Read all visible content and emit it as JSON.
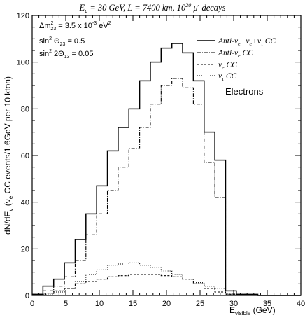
{
  "chart_data": {
    "type": "line",
    "title": "E_μ = 30 GeV, L = 7400 km, 10^20 μ⁻ decays",
    "title_parts": {
      "e": "E",
      "e_sub": "μ",
      "rest": " = 30 GeV, L = 7400 km, 10",
      "exp": "20",
      "mu": " μ",
      "mu_sup": "-",
      "tail": " decays"
    },
    "xlabel": "E_visible (GeV)",
    "xlabel_parts": {
      "main": "E",
      "sub": "visible",
      "unit": " (GeV)"
    },
    "ylabel": "dN/dE_ν (ν_e CC events/1.6GeV per 10 kton)",
    "ylabel_parts": {
      "a": "dN/dE",
      "a_sub": "ν",
      "b": " (ν",
      "b_sub": "e",
      "c": " CC events/1.6GeV per 10 kton)"
    },
    "xlim": [
      0,
      40
    ],
    "ylim": [
      0,
      120
    ],
    "xticks": [
      "0",
      "5",
      "10",
      "15",
      "20",
      "25",
      "30",
      "35",
      "40"
    ],
    "yticks": [
      "0",
      "20",
      "40",
      "60",
      "80",
      "100",
      "120"
    ],
    "grid": false,
    "legend_position": "top-right",
    "panel_label": "Electrons",
    "parameters": [
      {
        "lhs": "Δm",
        "sub": "23",
        "sup": "2",
        "rhs": " = 3.5 x 10",
        "rhs_sup": "-3",
        "tail": " eV",
        "tail_sup": "2"
      },
      {
        "lhs": "sin",
        "sup": "2",
        "sym": " Θ",
        "sub": "23",
        "rhs": " = 0.5"
      },
      {
        "lhs": "sin",
        "sup": "2",
        "sym": " 2Θ",
        "sub": "13",
        "rhs": " = 0.05"
      }
    ],
    "bin_edges": [
      0,
      1.6,
      3.2,
      4.8,
      6.4,
      8.0,
      9.6,
      11.2,
      12.8,
      14.4,
      16.0,
      17.6,
      19.2,
      20.8,
      22.4,
      24.0,
      25.6,
      27.2,
      28.8,
      30.4,
      32.0,
      33.6,
      35.2,
      36.8,
      38.4,
      40.0
    ],
    "series": [
      {
        "name": "Anti-ν_e+ν_e+ν_τ CC",
        "legend_parts": {
          "a": "Anti-ν",
          "a_sub": "e",
          "b": "+ν",
          "b_sub": "e",
          "c": "+ν",
          "c_sub": "τ",
          "d": " CC"
        },
        "style": "solid",
        "color": "#000000",
        "values": [
          0.5,
          4,
          7,
          14,
          24,
          35,
          47,
          62,
          72,
          80,
          92,
          100,
          106,
          108,
          104,
          92,
          70,
          58,
          2,
          0.5,
          0.5,
          0,
          0,
          0,
          0
        ]
      },
      {
        "name": "Anti-ν_e CC",
        "legend_parts": {
          "a": "Anti-ν",
          "a_sub": "e",
          "d": " CC"
        },
        "style": "dashdot",
        "color": "#000000",
        "values": [
          0.5,
          2,
          4,
          8,
          15,
          26,
          35,
          45,
          55,
          63,
          72,
          82,
          90,
          93,
          89,
          82,
          57,
          42,
          1,
          0.5,
          0,
          0,
          0,
          0,
          0
        ]
      },
      {
        "name": "ν_e CC",
        "legend_parts": {
          "a": "ν",
          "a_sub": "e",
          "d": " CC"
        },
        "style": "dashed",
        "color": "#000000",
        "values": [
          0,
          1,
          2,
          3,
          5,
          6,
          7,
          8,
          8.5,
          9,
          9,
          9,
          8.5,
          8,
          7,
          5,
          3,
          1.5,
          0.5,
          0,
          0,
          0,
          0,
          0,
          0
        ]
      },
      {
        "name": "ν_τ CC",
        "legend_parts": {
          "a": "ν",
          "a_sub": "τ",
          "d": " CC"
        },
        "style": "dotted",
        "color": "#000000",
        "values": [
          0,
          0.5,
          1.5,
          3,
          6,
          9,
          11,
          13,
          13.5,
          14,
          13,
          12,
          10.5,
          9,
          7,
          5.5,
          4,
          3,
          0.5,
          0,
          0,
          0,
          0,
          0,
          0
        ]
      }
    ]
  }
}
